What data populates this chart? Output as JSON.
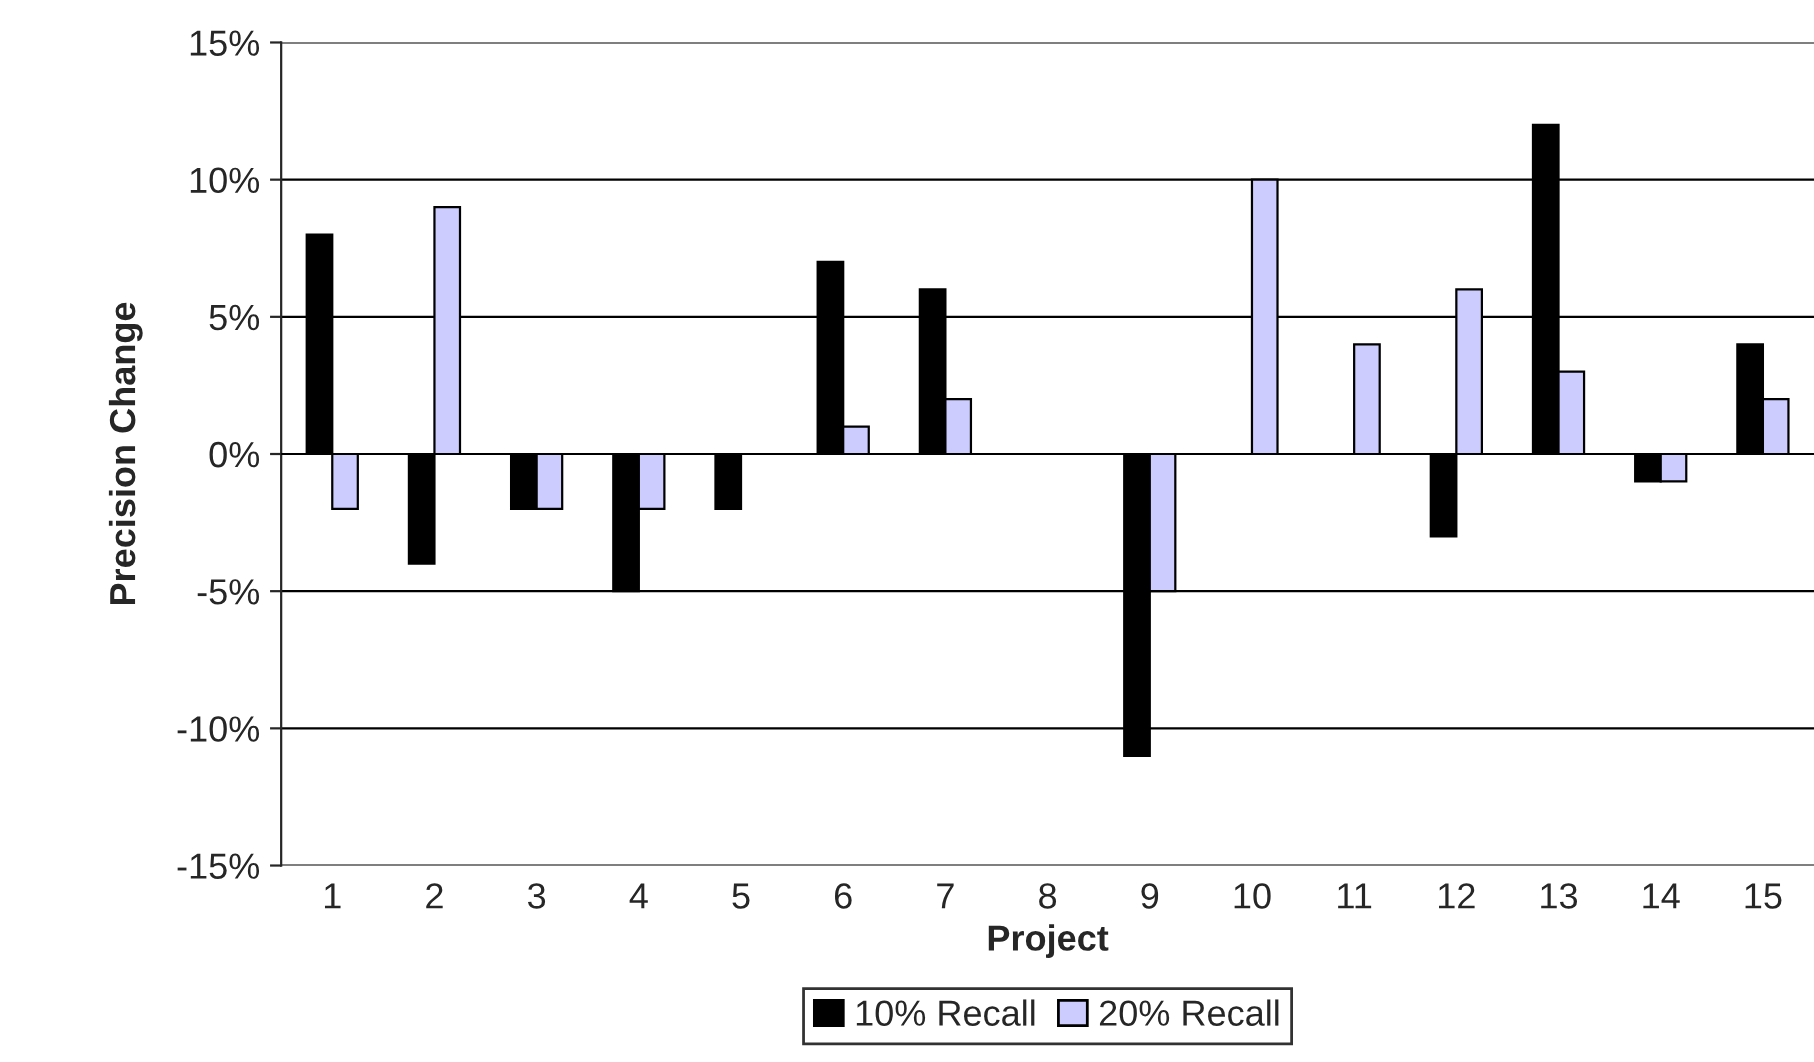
{
  "chart_data": {
    "type": "bar",
    "xlabel": "Project",
    "ylabel": "Precision Change",
    "categories": [
      "1",
      "2",
      "3",
      "4",
      "5",
      "6",
      "7",
      "8",
      "9",
      "10",
      "11",
      "12",
      "13",
      "14",
      "15"
    ],
    "series": [
      {
        "name": "10% Recall",
        "color": "#000000",
        "values": [
          8,
          -4,
          -2,
          -5,
          -2,
          7,
          6,
          0,
          -11,
          0,
          0,
          -3,
          12,
          -1,
          4
        ]
      },
      {
        "name": "20% Recall",
        "color": "#ccccff",
        "values": [
          -2,
          9,
          -2,
          -2,
          0,
          1,
          2,
          0,
          -5,
          10,
          4,
          6,
          3,
          -1,
          2
        ]
      }
    ],
    "ylim": [
      -15,
      15
    ],
    "yticks": [
      {
        "value": -15,
        "label": "-15%"
      },
      {
        "value": -10,
        "label": "-10%"
      },
      {
        "value": -5,
        "label": "-5%"
      },
      {
        "value": 0,
        "label": "0%"
      },
      {
        "value": 5,
        "label": "5%"
      },
      {
        "value": 10,
        "label": "10%"
      },
      {
        "value": 15,
        "label": "15%"
      }
    ],
    "grid": "y",
    "legend": "bottom"
  }
}
